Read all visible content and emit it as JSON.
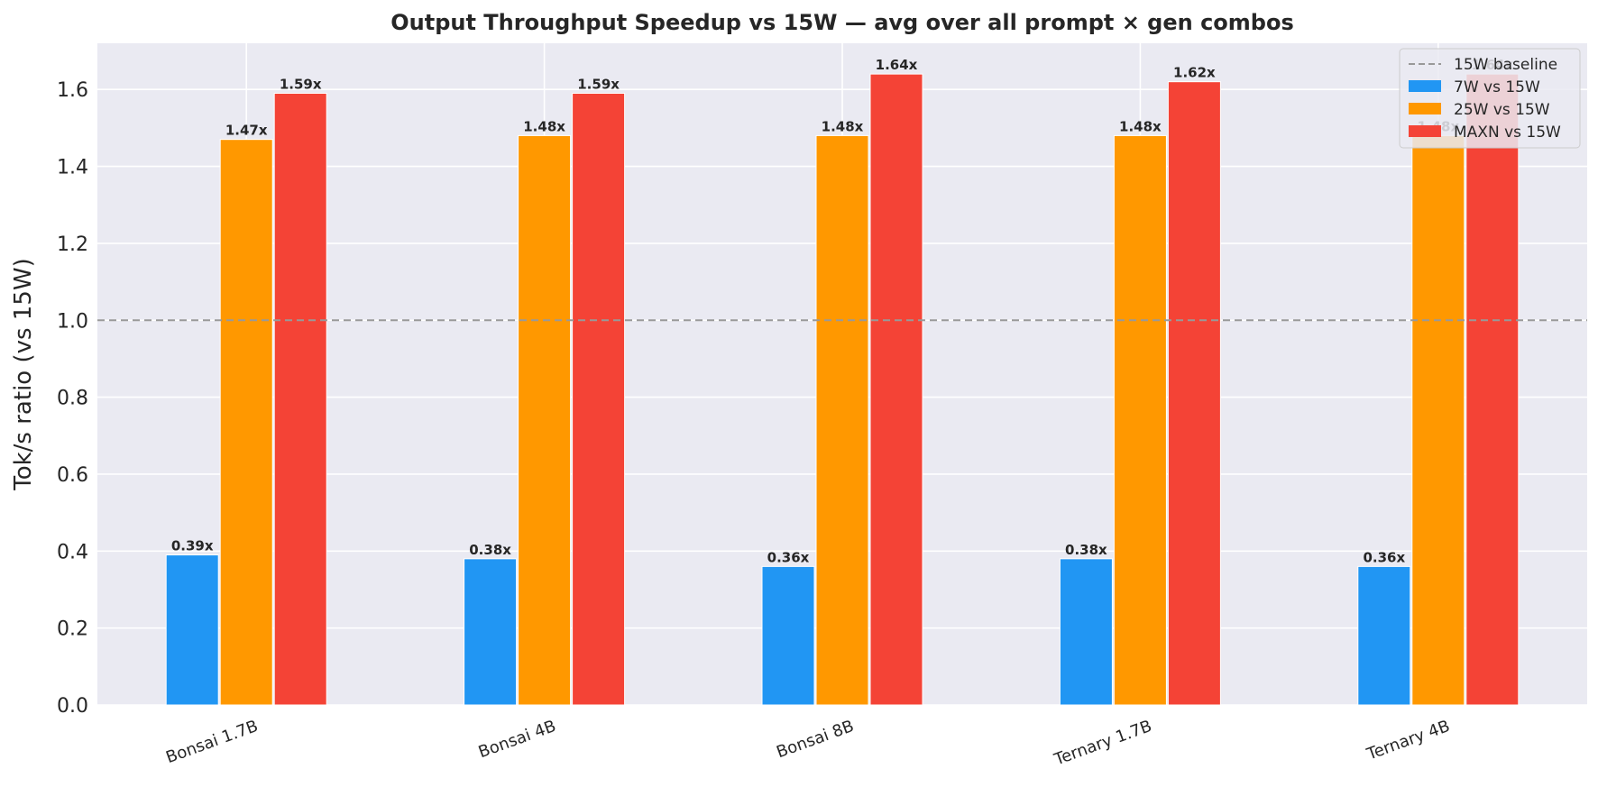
{
  "chart_data": {
    "type": "bar",
    "title": "Output Throughput Speedup vs 15W — avg over all prompt × gen combos",
    "xlabel": "",
    "ylabel": "Tok/s ratio (vs 15W)",
    "ylim": [
      0,
      1.72
    ],
    "yticks": [
      "0.0",
      "0.2",
      "0.4",
      "0.6",
      "0.8",
      "1.0",
      "1.2",
      "1.4",
      "1.6"
    ],
    "categories": [
      "Bonsai 1.7B",
      "Bonsai 4B",
      "Bonsai 8B",
      "Ternary 1.7B",
      "Ternary 4B"
    ],
    "series": [
      {
        "name": "7W vs 15W",
        "color": "#2196F3",
        "values": [
          0.39,
          0.38,
          0.36,
          0.38,
          0.36
        ],
        "labels": [
          "0.39x",
          "0.38x",
          "0.36x",
          "0.38x",
          "0.36x"
        ]
      },
      {
        "name": "25W vs 15W",
        "color": "#FF9800",
        "values": [
          1.47,
          1.48,
          1.48,
          1.48,
          1.48
        ],
        "labels": [
          "1.47x",
          "1.48x",
          "1.48x",
          "1.48x",
          "1.48x"
        ]
      },
      {
        "name": "MAXN vs 15W",
        "color": "#F44336",
        "values": [
          1.59,
          1.59,
          1.64,
          1.62,
          1.64
        ],
        "labels": [
          "1.59x",
          "1.59x",
          "1.64x",
          "1.62x",
          "1.64x"
        ]
      }
    ],
    "baseline": {
      "name": "15W baseline",
      "value": 1.0,
      "color": "#999999",
      "style": "dashed"
    },
    "grid": true,
    "background": "#EAEAF2",
    "legend": "top-right"
  }
}
